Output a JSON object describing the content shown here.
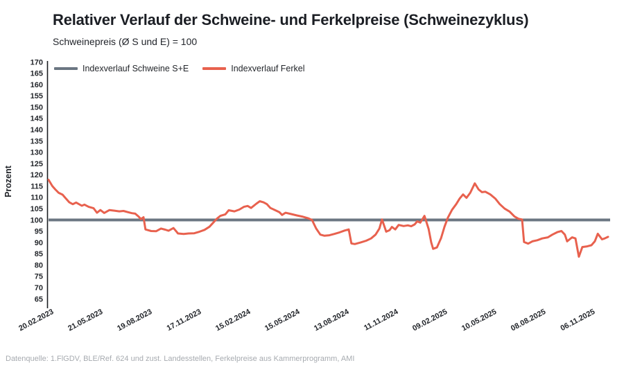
{
  "page": {
    "title": "Relativer Verlauf der Schweine- und Ferkelpreise (Schweinezyklus)",
    "subtitle": "Schweinepreis (Ø S und E) = 100",
    "source": "Datenquelle: 1.FlGDV, BLE/Ref. 624 und zust. Landesstellen, Ferkelpreise aus Kammerprogramm, AMI"
  },
  "colors": {
    "schweine_line": "#6B7682",
    "ferkel_line": "#E8614E",
    "axis_line": "#1a1d21",
    "tick_text": "#23262b",
    "source_text": "#a7abb0",
    "background": "#ffffff"
  },
  "chart_data": {
    "type": "line",
    "title": "Relativer Verlauf der Schweine- und Ferkelpreise (Schweinezyklus)",
    "subtitle": "Schweinepreis (Ø S und E) = 100",
    "xlabel": "",
    "ylabel": "Prozent",
    "ylim": [
      65,
      170
    ],
    "ytick_step": 5,
    "grid": false,
    "legend_position": "top-left",
    "x_unit": "weeks since 20.02.2023",
    "weeks_per_tick": 13,
    "x_tick_labels": [
      "20.02.2023",
      "21.05.2023",
      "19.08.2023",
      "17.11.2023",
      "15.02.2024",
      "15.05.2024",
      "13.08.2024",
      "11.11.2024",
      "09.02.2025",
      "10.05.2025",
      "08.08.2025",
      "06.11.2025"
    ],
    "series": [
      {
        "name": "Indexverlauf Schweine S+E",
        "color": "#6B7682",
        "style": "constant",
        "value": 100
      },
      {
        "name": "Indexverlauf Ferkel",
        "color": "#E8614E",
        "style": "line",
        "points": [
          [
            0,
            117.8
          ],
          [
            1,
            115
          ],
          [
            1.8,
            113.5
          ],
          [
            2.7,
            112
          ],
          [
            3.7,
            111.2
          ],
          [
            4.6,
            109.5
          ],
          [
            5.5,
            107.8
          ],
          [
            6.4,
            107
          ],
          [
            7.3,
            107.7
          ],
          [
            8.8,
            106.3
          ],
          [
            9.5,
            106.8
          ],
          [
            10.6,
            105.8
          ],
          [
            11.9,
            105.2
          ],
          [
            12.8,
            103.2
          ],
          [
            13.7,
            104.4
          ],
          [
            14.7,
            103.1
          ],
          [
            16.1,
            104.4
          ],
          [
            17.4,
            104.1
          ],
          [
            18.7,
            103.8
          ],
          [
            19.8,
            104
          ],
          [
            21.1,
            103.4
          ],
          [
            22,
            103
          ],
          [
            22.9,
            102.8
          ],
          [
            23.8,
            101.5
          ],
          [
            24.4,
            100.4
          ],
          [
            25.1,
            101.2
          ],
          [
            25.6,
            95.8
          ],
          [
            27.1,
            95.1
          ],
          [
            28.4,
            95
          ],
          [
            29.7,
            96.2
          ],
          [
            30.8,
            95.7
          ],
          [
            31.7,
            95.2
          ],
          [
            33,
            96.4
          ],
          [
            34.2,
            94
          ],
          [
            35.7,
            93.8
          ],
          [
            37,
            94
          ],
          [
            38.5,
            94.1
          ],
          [
            39.9,
            94.8
          ],
          [
            41.2,
            95.6
          ],
          [
            42.5,
            97
          ],
          [
            43.6,
            99
          ],
          [
            44.5,
            100.6
          ],
          [
            45.4,
            101.8
          ],
          [
            46.7,
            102.5
          ],
          [
            47.6,
            104.3
          ],
          [
            49.1,
            103.8
          ],
          [
            50.4,
            104.6
          ],
          [
            51.6,
            105.8
          ],
          [
            52.6,
            106.2
          ],
          [
            53.5,
            105.3
          ],
          [
            54.9,
            107.2
          ],
          [
            55.8,
            108.3
          ],
          [
            56.8,
            107.8
          ],
          [
            57.7,
            107
          ],
          [
            58.6,
            105.3
          ],
          [
            59.9,
            104.3
          ],
          [
            61,
            103.4
          ],
          [
            61.7,
            102.2
          ],
          [
            62.6,
            103.2
          ],
          [
            64.1,
            102.6
          ],
          [
            65.6,
            102
          ],
          [
            67,
            101.5
          ],
          [
            68.5,
            100.8
          ],
          [
            69.6,
            100
          ],
          [
            70.7,
            96.2
          ],
          [
            71.8,
            93.5
          ],
          [
            72.9,
            93
          ],
          [
            74.2,
            93.2
          ],
          [
            75.5,
            93.8
          ],
          [
            76.9,
            94.5
          ],
          [
            78.2,
            95.3
          ],
          [
            79.3,
            95.8
          ],
          [
            80,
            89.6
          ],
          [
            80.9,
            89.3
          ],
          [
            82.4,
            90
          ],
          [
            83.9,
            90.8
          ],
          [
            85.2,
            91.8
          ],
          [
            86.4,
            93.5
          ],
          [
            87.4,
            96.2
          ],
          [
            88.1,
            100.2
          ],
          [
            89.2,
            94.8
          ],
          [
            90.1,
            95.5
          ],
          [
            90.7,
            96.9
          ],
          [
            91.6,
            95.8
          ],
          [
            92.5,
            97.8
          ],
          [
            93.8,
            97.3
          ],
          [
            94.9,
            97.6
          ],
          [
            95.8,
            97.2
          ],
          [
            96.7,
            98
          ],
          [
            97.4,
            99.4
          ],
          [
            98.2,
            98.8
          ],
          [
            99.3,
            101.8
          ],
          [
            100.4,
            96
          ],
          [
            101.1,
            90
          ],
          [
            101.6,
            87.2
          ],
          [
            102.6,
            87.8
          ],
          [
            103.7,
            92
          ],
          [
            104.6,
            97
          ],
          [
            105.5,
            101
          ],
          [
            106.6,
            104.5
          ],
          [
            107.7,
            107
          ],
          [
            108.6,
            109.5
          ],
          [
            109.5,
            111.3
          ],
          [
            110.4,
            109.8
          ],
          [
            111.4,
            112
          ],
          [
            112.6,
            116.2
          ],
          [
            113.6,
            113.5
          ],
          [
            114.5,
            112.3
          ],
          [
            115.4,
            112.5
          ],
          [
            116.7,
            111.3
          ],
          [
            118,
            109.5
          ],
          [
            119.2,
            107
          ],
          [
            120.5,
            105
          ],
          [
            121.8,
            103.7
          ],
          [
            123.1,
            101.5
          ],
          [
            124.2,
            100.5
          ],
          [
            125.1,
            100.2
          ],
          [
            125.6,
            90.2
          ],
          [
            126.7,
            89.5
          ],
          [
            127.8,
            90.5
          ],
          [
            129.1,
            91
          ],
          [
            130.4,
            91.8
          ],
          [
            131.9,
            92.3
          ],
          [
            133.1,
            93.5
          ],
          [
            134.4,
            94.6
          ],
          [
            135.5,
            95.1
          ],
          [
            136.4,
            93.5
          ],
          [
            137,
            90.5
          ],
          [
            138.3,
            92.3
          ],
          [
            139.2,
            91.8
          ],
          [
            140.1,
            83.7
          ],
          [
            141,
            88
          ],
          [
            142.3,
            88.3
          ],
          [
            143.4,
            88.8
          ],
          [
            144.3,
            90.5
          ],
          [
            145.1,
            93.9
          ],
          [
            146.2,
            91.4
          ],
          [
            146.9,
            91.8
          ],
          [
            147.8,
            92.5
          ]
        ]
      }
    ]
  }
}
